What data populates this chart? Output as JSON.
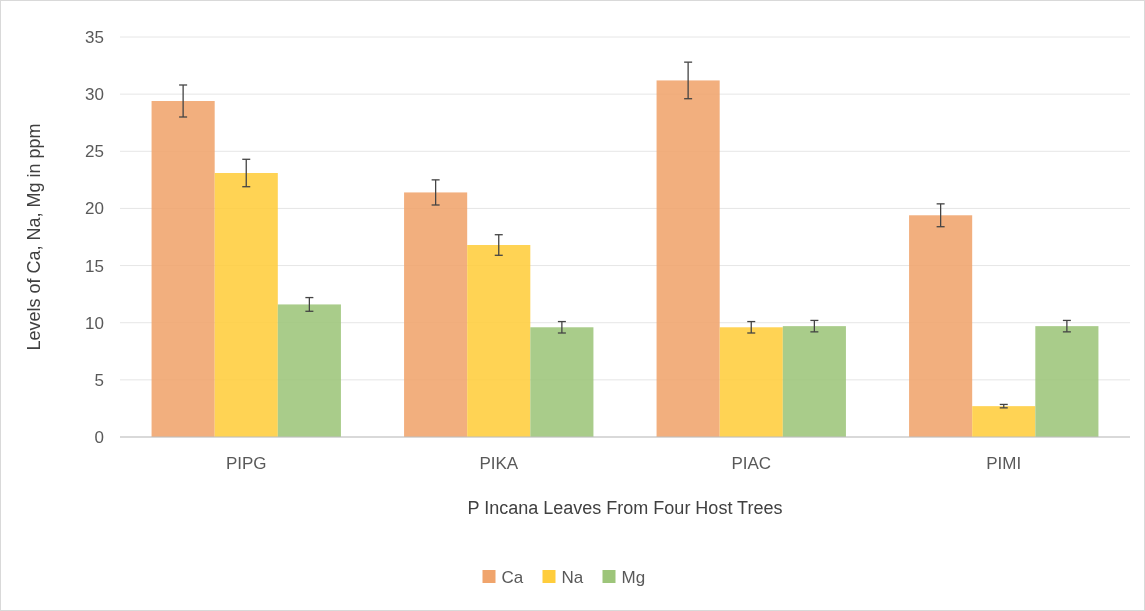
{
  "chart_data": {
    "type": "bar",
    "xlabel": "P Incana Leaves From Four Host Trees",
    "ylabel": "Levels of Ca, Na, Mg in ppm",
    "categories": [
      "PIPG",
      "PIKA",
      "PIAC",
      "PIMI"
    ],
    "series": [
      {
        "name": "Ca",
        "color": "#f0a46c",
        "values": [
          29.4,
          21.4,
          31.2,
          19.4
        ],
        "errors": [
          1.4,
          1.1,
          1.6,
          1.0
        ]
      },
      {
        "name": "Na",
        "color": "#ffcd3c",
        "values": [
          23.1,
          16.8,
          9.6,
          2.7
        ],
        "errors": [
          1.2,
          0.9,
          0.5,
          0.15
        ]
      },
      {
        "name": "Mg",
        "color": "#9dc57a",
        "values": [
          11.6,
          9.6,
          9.7,
          9.7
        ],
        "errors": [
          0.6,
          0.5,
          0.5,
          0.5
        ]
      }
    ],
    "ylim": [
      0,
      35
    ],
    "yticks": [
      0,
      5,
      10,
      15,
      20,
      25,
      30,
      35
    ],
    "grid": "y",
    "legend": "bottom"
  }
}
